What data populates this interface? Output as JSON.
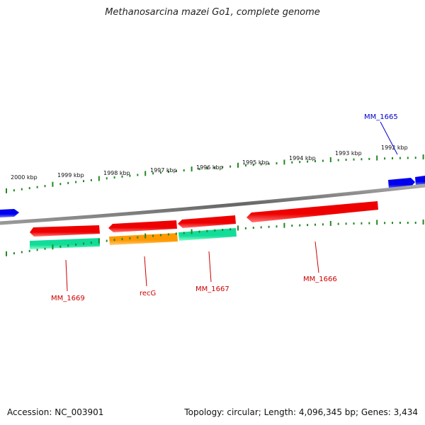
{
  "title": "Methanosarcina mazei Go1, complete genome",
  "footer": {
    "accession": "Accession: NC_003901",
    "summary": "Topology: circular; Length: 4,096,345 bp; Genes: 3,434"
  },
  "ticks": [
    "2000 kbp",
    "1999 kbp",
    "1998 kbp",
    "1997 kbp",
    "1996 kbp",
    "1995 kbp",
    "1994 kbp",
    "1993 kbp",
    "1992 kbp"
  ],
  "genes": [
    {
      "name": "MM_1669",
      "color": "#cc0000"
    },
    {
      "name": "recG",
      "color": "#cc0000"
    },
    {
      "name": "MM_1667",
      "color": "#cc0000"
    },
    {
      "name": "MM_1666",
      "color": "#cc0000"
    },
    {
      "name": "MM_1665",
      "color": "#0000cc"
    }
  ],
  "colors": {
    "forward_strand": "#0000ee",
    "reverse_strand": "#ee0000",
    "cog_green": "#11dd99",
    "cog_orange": "#ff9900",
    "backbone": "#808080",
    "gc_dots": "#228822"
  }
}
